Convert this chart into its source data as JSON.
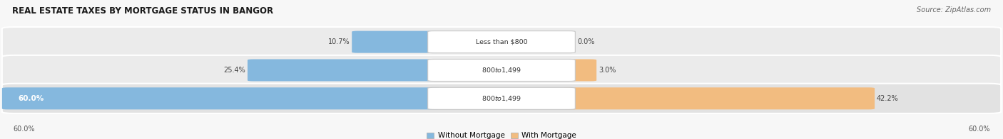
{
  "title": "REAL ESTATE TAXES BY MORTGAGE STATUS IN BANGOR",
  "source": "Source: ZipAtlas.com",
  "rows": [
    {
      "label": "Less than $800",
      "without_mortgage": 10.7,
      "with_mortgage": 0.0
    },
    {
      "label": "$800 to $1,499",
      "without_mortgage": 25.4,
      "with_mortgage": 3.0
    },
    {
      "label": "$800 to $1,499",
      "without_mortgage": 60.0,
      "with_mortgage": 42.2
    }
  ],
  "max_val": 60.0,
  "color_without": "#85b8de",
  "color_with": "#f2bc80",
  "bg_row_light": "#ebebeb",
  "bg_row_dark": "#e2e2e2",
  "bg_fig": "#f7f7f7",
  "title_color": "#1a1a1a",
  "source_color": "#666666",
  "label_dark_color": "#444444",
  "label_white_color": "#ffffff",
  "legend_without": "Without Mortgage",
  "legend_with": "With Mortgage",
  "bottom_left_label": "60.0%",
  "bottom_right_label": "60.0%"
}
